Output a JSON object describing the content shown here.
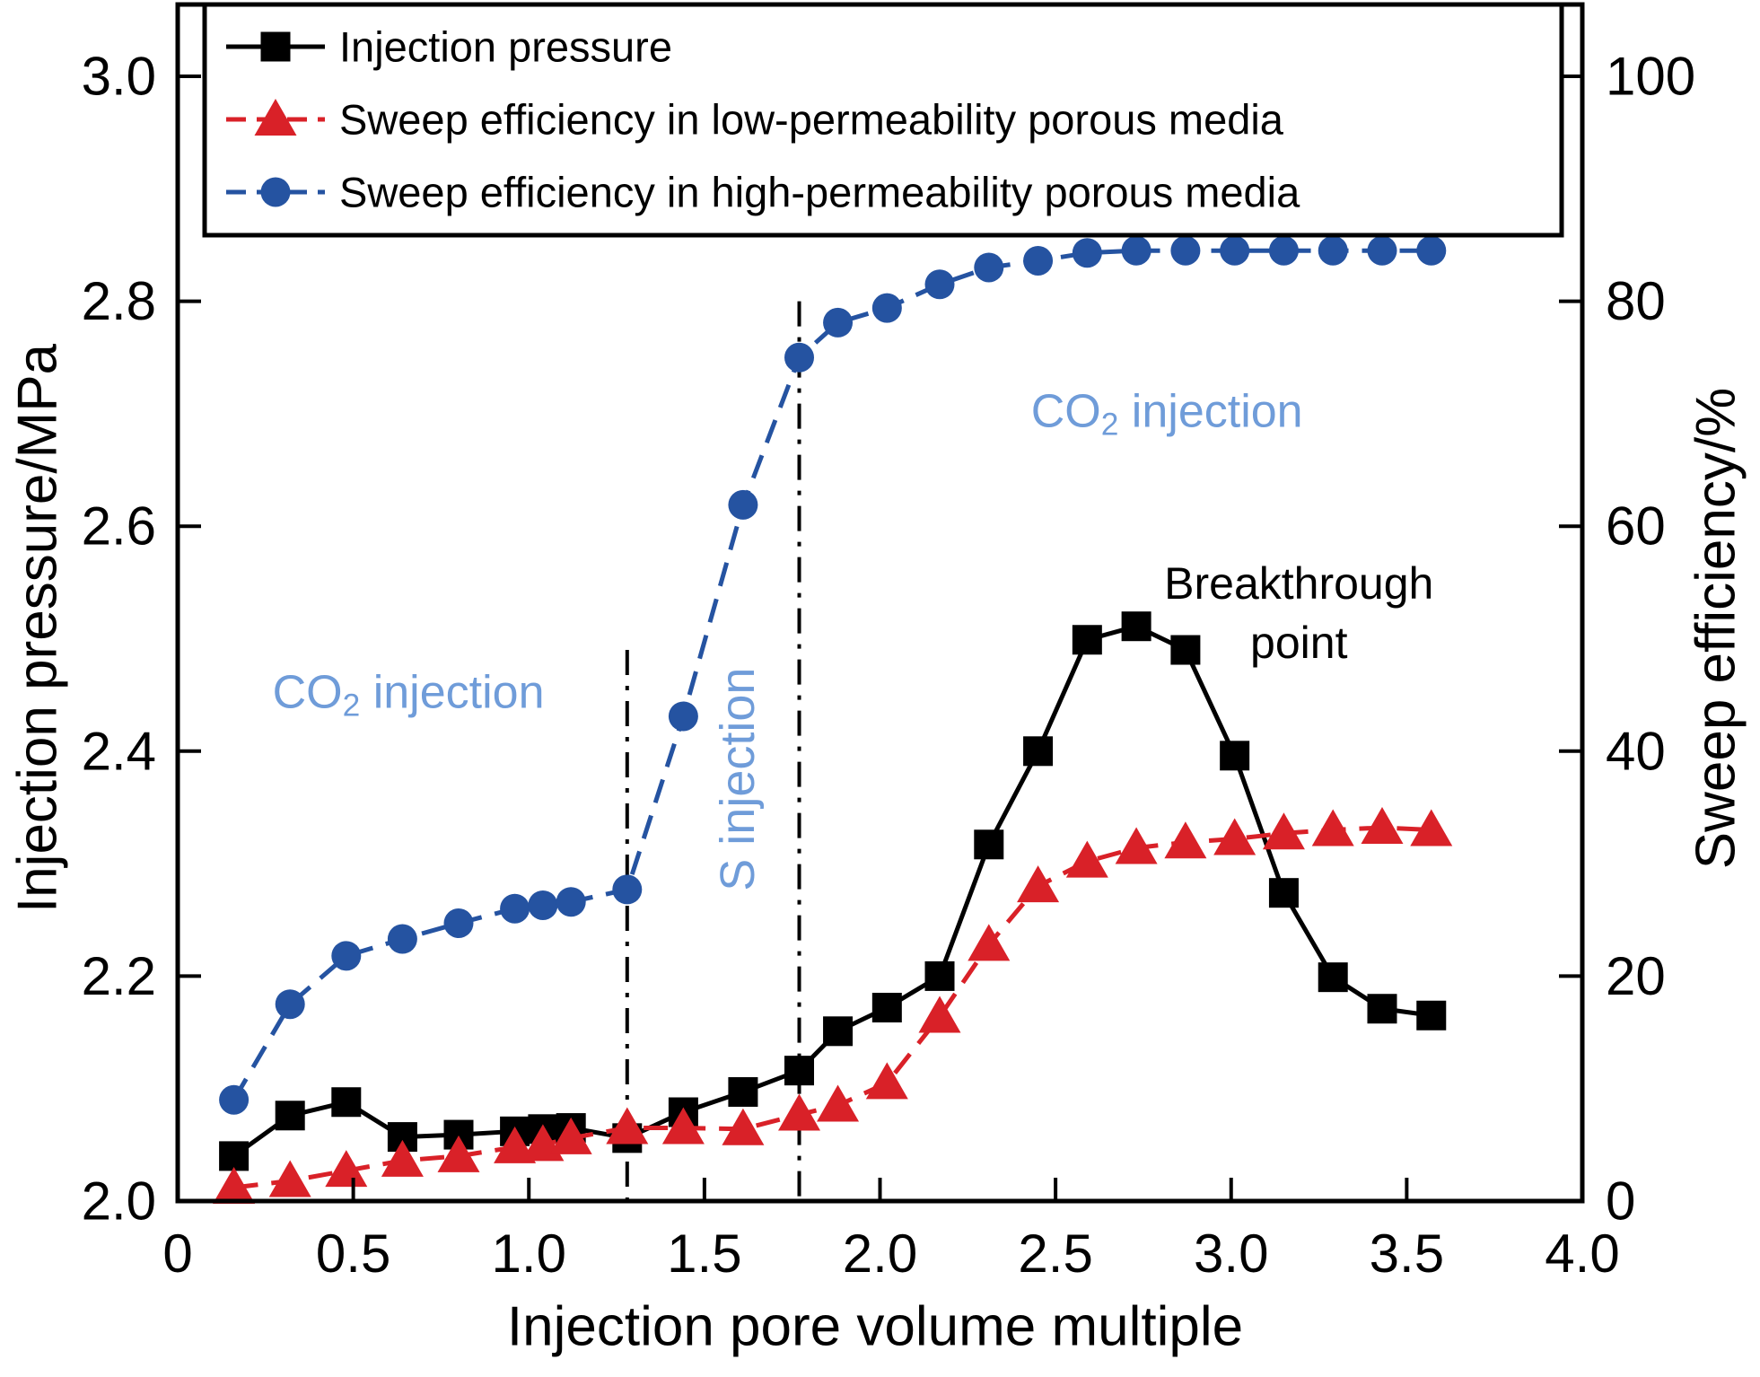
{
  "chart_data": {
    "type": "line",
    "title": "",
    "xlabel": "Injection pore volume multiple",
    "ylabel_left": "Injection pressure/MPa",
    "ylabel_right": "Sweep efficiency/%",
    "xlim": [
      0,
      4.0
    ],
    "ylim_left": [
      2.0,
      3.0
    ],
    "ylim_right": [
      0,
      100
    ],
    "grid": false,
    "legend_position": "top-inside",
    "xticks": [
      "0",
      "0.5",
      "1.0",
      "1.5",
      "2.0",
      "2.5",
      "3.0",
      "3.5",
      "4.0"
    ],
    "yticks_left": [
      "2.0",
      "2.2",
      "2.4",
      "2.6",
      "2.8",
      "3.0"
    ],
    "yticks_right": [
      "0",
      "20",
      "40",
      "60",
      "80",
      "100"
    ],
    "x": [
      0.16,
      0.32,
      0.48,
      0.64,
      0.8,
      0.96,
      1.04,
      1.12,
      1.28,
      1.44,
      1.61,
      1.77,
      1.88,
      2.02,
      2.17,
      2.31,
      2.45,
      2.59,
      2.73,
      2.87,
      3.01,
      3.15,
      3.29,
      3.43,
      3.57
    ],
    "series": [
      {
        "name": "Injection pressure",
        "axis": "left",
        "color": "#000000",
        "marker": "square",
        "line": "solid",
        "values": [
          2.04,
          2.076,
          2.088,
          2.057,
          2.059,
          2.062,
          2.064,
          2.065,
          2.056,
          2.079,
          2.097,
          2.116,
          2.151,
          2.172,
          2.2,
          2.317,
          2.4,
          2.499,
          2.511,
          2.49,
          2.396,
          2.274,
          2.199,
          2.171,
          2.165
        ]
      },
      {
        "name": "Sweep efficiency in low-permeability porous media",
        "axis": "right",
        "color": "#d92128",
        "marker": "triangle",
        "line": "dashed",
        "values": [
          1.2,
          1.8,
          2.7,
          3.6,
          4.0,
          4.8,
          5.0,
          5.6,
          6.5,
          6.5,
          6.4,
          7.7,
          8.5,
          10.5,
          16.4,
          22.8,
          28.0,
          30.2,
          31.4,
          31.9,
          32.2,
          32.7,
          33.0,
          33.2,
          33.0
        ]
      },
      {
        "name": "Sweep efficiency in high-permeability porous media",
        "axis": "right",
        "color": "#2553a1",
        "marker": "circle",
        "line": "dashed",
        "values": [
          9.0,
          17.5,
          21.8,
          23.3,
          24.7,
          26.0,
          26.3,
          26.6,
          27.7,
          43.1,
          61.9,
          75.0,
          78.1,
          79.4,
          81.5,
          83.0,
          83.6,
          84.3,
          84.5,
          84.5,
          84.5,
          84.5,
          84.5,
          84.5,
          84.5
        ]
      }
    ],
    "vlines": [
      {
        "x": 1.28,
        "y_top_right_pct": 49,
        "style": "dashdot",
        "color": "#000000"
      },
      {
        "x": 1.77,
        "y_top_right_pct": 80,
        "style": "dashdot",
        "color": "#000000"
      }
    ],
    "annotations": [
      {
        "id": "co2-injection-left",
        "parts": [
          {
            "t": "CO"
          },
          {
            "t": "2",
            "sub": true
          },
          {
            "t": " injection"
          }
        ],
        "color": "#6f9cd9",
        "x": 0.657,
        "y_right_pct": 45.2,
        "rotate": 0,
        "size": 52
      },
      {
        "id": "s-injection",
        "parts": [
          {
            "t": "S injection"
          }
        ],
        "color": "#6f9cd9",
        "x": 1.595,
        "y_right_pct": 37.5,
        "rotate": -90,
        "size": 54
      },
      {
        "id": "co2-injection-right",
        "parts": [
          {
            "t": "CO"
          },
          {
            "t": "2",
            "sub": true
          },
          {
            "t": " injection"
          }
        ],
        "color": "#6f9cd9",
        "x": 2.817,
        "y_right_pct": 70.2,
        "rotate": 0,
        "size": 52
      },
      {
        "id": "breakthrough-point",
        "lines": [
          "Breakthrough",
          "point"
        ],
        "color": "#000000",
        "x": 3.193,
        "y_right_pct": 54.9,
        "rotate": 0,
        "size": 50
      }
    ]
  }
}
